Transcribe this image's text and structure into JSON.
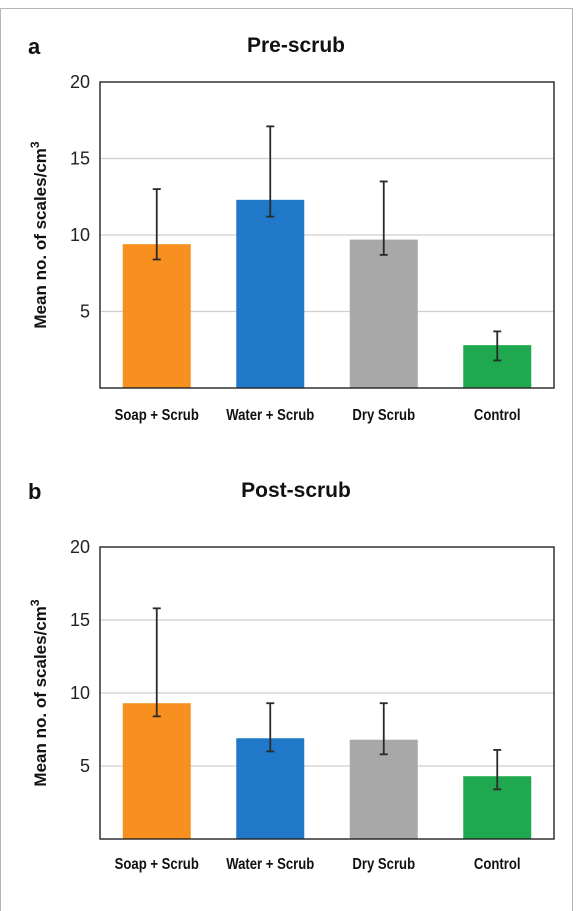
{
  "colors": {
    "soap": "#f7901e",
    "water": "#1f78c8",
    "dry": "#a8a8a8",
    "control": "#1fa84f",
    "grid": "#cfcfcf",
    "axis": "#222222"
  },
  "chart_data": [
    {
      "type": "bar",
      "panel": "a",
      "title": "Pre-scrub",
      "ylabel": "Mean no. of scales/cm",
      "ylabel_sup": "3",
      "ylim": [
        0,
        20
      ],
      "yticks": [
        "5",
        "10",
        "15",
        "20"
      ],
      "ytick_values": [
        5,
        10,
        15,
        20
      ],
      "grid": true,
      "categories": [
        "Soap + Scrub",
        "Water + Scrub",
        "Dry Scrub",
        "Control"
      ],
      "values": [
        9.4,
        12.3,
        9.7,
        2.8
      ],
      "error_low": [
        8.4,
        11.2,
        8.7,
        1.8
      ],
      "error_high": [
        13.0,
        17.1,
        13.5,
        3.7
      ],
      "bar_colors": [
        "#f7901e",
        "#1f78c8",
        "#a8a8a8",
        "#1fa84f"
      ]
    },
    {
      "type": "bar",
      "panel": "b",
      "title": "Post-scrub",
      "ylabel": "Mean no. of scales/cm",
      "ylabel_sup": "3",
      "ylim": [
        0,
        20
      ],
      "yticks": [
        "5",
        "10",
        "15",
        "20"
      ],
      "ytick_values": [
        5,
        10,
        15,
        20
      ],
      "grid": true,
      "categories": [
        "Soap + Scrub",
        "Water + Scrub",
        "Dry Scrub",
        "Control"
      ],
      "values": [
        9.3,
        6.9,
        6.8,
        4.3
      ],
      "error_low": [
        8.4,
        6.0,
        5.8,
        3.4
      ],
      "error_high": [
        15.8,
        9.3,
        9.3,
        6.1
      ],
      "bar_colors": [
        "#f7901e",
        "#1f78c8",
        "#a8a8a8",
        "#1fa84f"
      ]
    }
  ]
}
